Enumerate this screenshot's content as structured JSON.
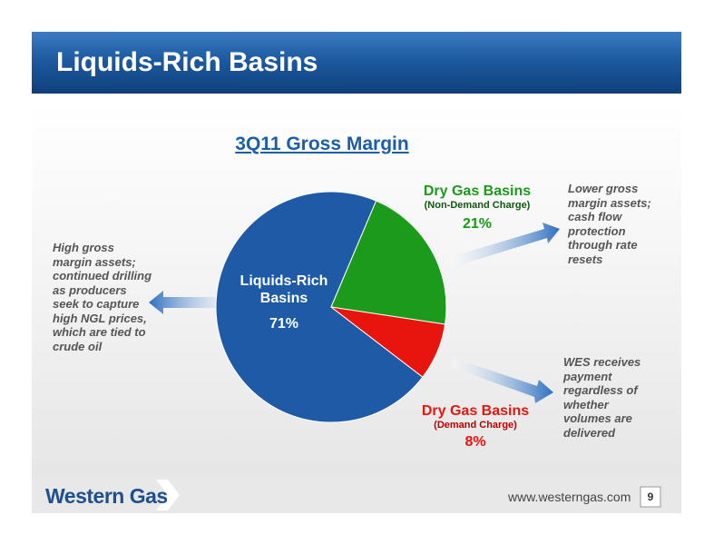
{
  "header": {
    "title": "Liquids-Rich Basins"
  },
  "chart_data": {
    "type": "pie",
    "title": "3Q11 Gross Margin",
    "categories": [
      "Liquids-Rich Basins",
      "Dry Gas Basins",
      "Dry Gas Basins"
    ],
    "sublabels": [
      null,
      "(Non-Demand Charge)",
      "(Demand Charge)"
    ],
    "values": [
      71,
      21,
      8
    ],
    "value_labels": [
      "71%",
      "21%",
      "8%"
    ],
    "colors": [
      "#1f5aa6",
      "#1c9a1c",
      "#e8150e"
    ]
  },
  "annotations": {
    "left": "High gross margin assets; continued drilling as producers seek to capture high NGL prices, which are tied to crude oil",
    "right_top": "Lower gross margin assets; cash flow protection through rate resets",
    "right_bottom": "WES receives payment regardless of whether volumes are delivered"
  },
  "footer": {
    "logo": "Western Gas",
    "url": "www.westerngas.com",
    "page": "9"
  }
}
